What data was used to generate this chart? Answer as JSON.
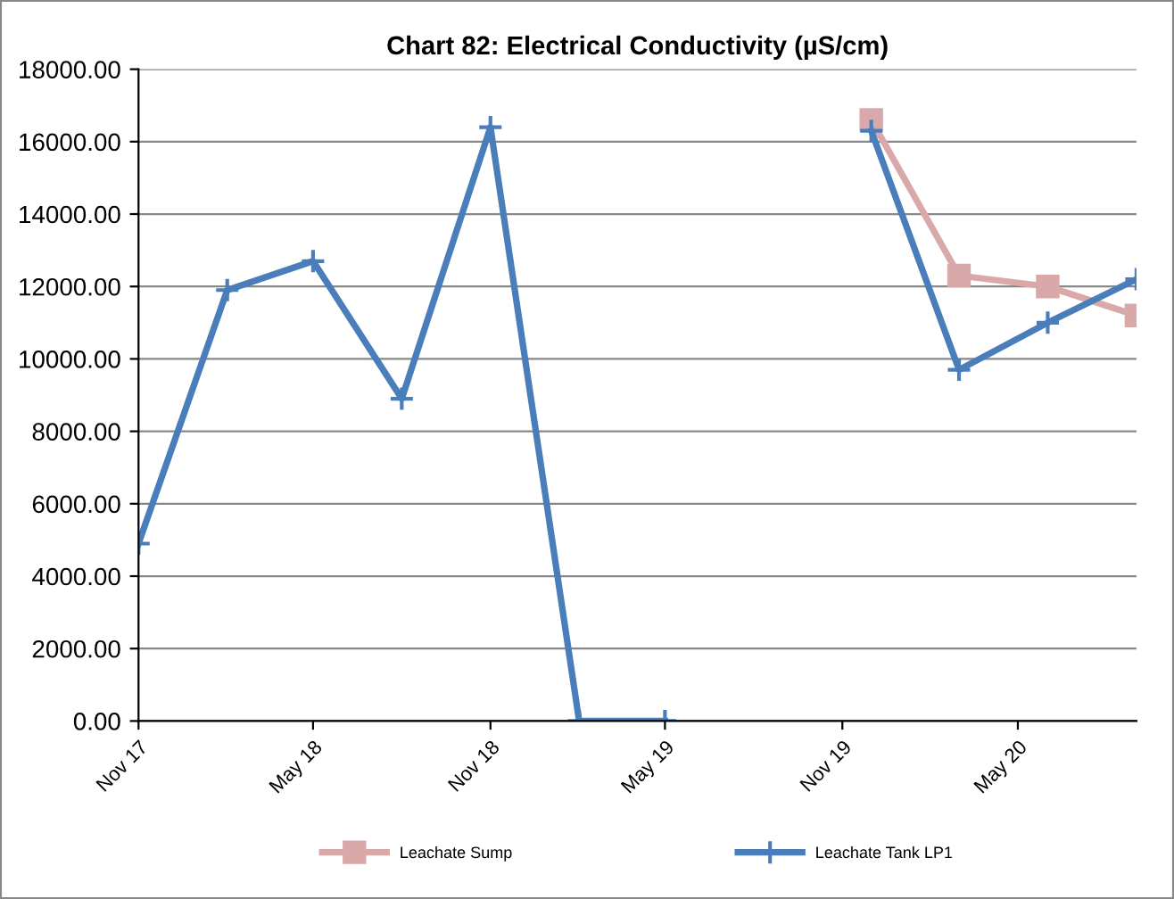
{
  "chart_data": {
    "type": "line",
    "title": "Chart 82: Electrical Conductivity (µS/cm)",
    "x": [
      "2017-11",
      "2018-02",
      "2018-05",
      "2018-08",
      "2018-11",
      "2019-02",
      "2019-05",
      "2019-08",
      "2019-12",
      "2020-03",
      "2020-06",
      "2020-09"
    ],
    "series": [
      {
        "name": "Leachate Sump",
        "color": "#d9a8a8",
        "marker": "square",
        "values": [
          null,
          null,
          null,
          null,
          null,
          null,
          null,
          null,
          16600,
          12300,
          12000,
          11200
        ]
      },
      {
        "name": "Leachate Tank LP1",
        "color": "#4a7ebb",
        "marker": "cross",
        "values": [
          4900,
          11900,
          12700,
          8900,
          16400,
          0,
          0,
          null,
          16300,
          9700,
          11000,
          12200
        ]
      }
    ],
    "xlim": [
      "2017-11",
      "2020-09"
    ],
    "xticks": [
      {
        "value": "2017-11",
        "label": "Nov 17"
      },
      {
        "value": "2018-05",
        "label": "May 18"
      },
      {
        "value": "2018-11",
        "label": "Nov 18"
      },
      {
        "value": "2019-05",
        "label": "May 19"
      },
      {
        "value": "2019-11",
        "label": "Nov 19"
      },
      {
        "value": "2020-05",
        "label": "May 20"
      }
    ],
    "ylim": [
      0,
      18000
    ],
    "yticks": [
      {
        "value": 0,
        "label": "0.00"
      },
      {
        "value": 2000,
        "label": "2000.00"
      },
      {
        "value": 4000,
        "label": "4000.00"
      },
      {
        "value": 6000,
        "label": "6000.00"
      },
      {
        "value": 8000,
        "label": "8000.00"
      },
      {
        "value": 10000,
        "label": "10000.00"
      },
      {
        "value": 12000,
        "label": "12000.00"
      },
      {
        "value": 14000,
        "label": "14000.00"
      },
      {
        "value": 16000,
        "label": "16000.00"
      },
      {
        "value": 18000,
        "label": "18000.00"
      }
    ],
    "grid": "y",
    "legend": "bottom",
    "line_style": "solid"
  }
}
